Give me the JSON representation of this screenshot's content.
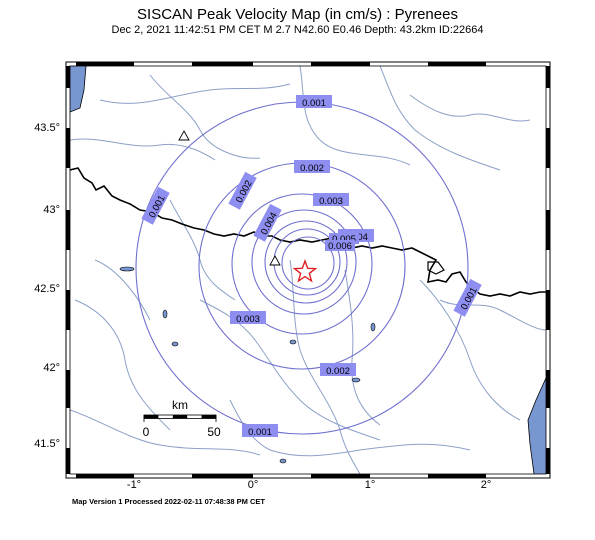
{
  "header": {
    "title": "SISCAN Peak Velocity Map (in cm/s) : Pyrenees",
    "subtitle": "Dec  2, 2021 11:42:51 PM CET   M 2.7   N42.60 E0.46   Depth: 43.2km   ID:22664"
  },
  "footer": {
    "text": "Map Version 1 Processed 2022-02-11 07:48:38 PM CET"
  },
  "axes": {
    "x_ticks": [
      "-1°",
      "0°",
      "1°",
      "2°"
    ],
    "y_ticks": [
      "43.5°",
      "43°",
      "42.5°",
      "42°",
      "41.5°"
    ]
  },
  "contours": [
    {
      "label": "0.001"
    },
    {
      "label": "0.001"
    },
    {
      "label": "0.001"
    },
    {
      "label": "0.001"
    },
    {
      "label": "0.002"
    },
    {
      "label": "0.002"
    },
    {
      "label": "0.002"
    },
    {
      "label": "0.003"
    },
    {
      "label": "0.003"
    },
    {
      "label": "0.004"
    },
    {
      "label": "0.004"
    },
    {
      "label": "0.005"
    },
    {
      "label": "0.006"
    }
  ],
  "scale_bar": {
    "unit": "km",
    "start": "0",
    "end": "50"
  },
  "epicenter": {
    "lat": 42.6,
    "lon": 0.46,
    "symbol": "red-star"
  },
  "stations": [
    {
      "symbol": "triangle"
    },
    {
      "symbol": "triangle"
    }
  ],
  "colors": {
    "contour": "#7070d0",
    "label_box": "#8e8ef0",
    "rivers": "#8ca0c8",
    "water": "#7897d0",
    "border": "#000000",
    "epicenter": "#e02020"
  }
}
